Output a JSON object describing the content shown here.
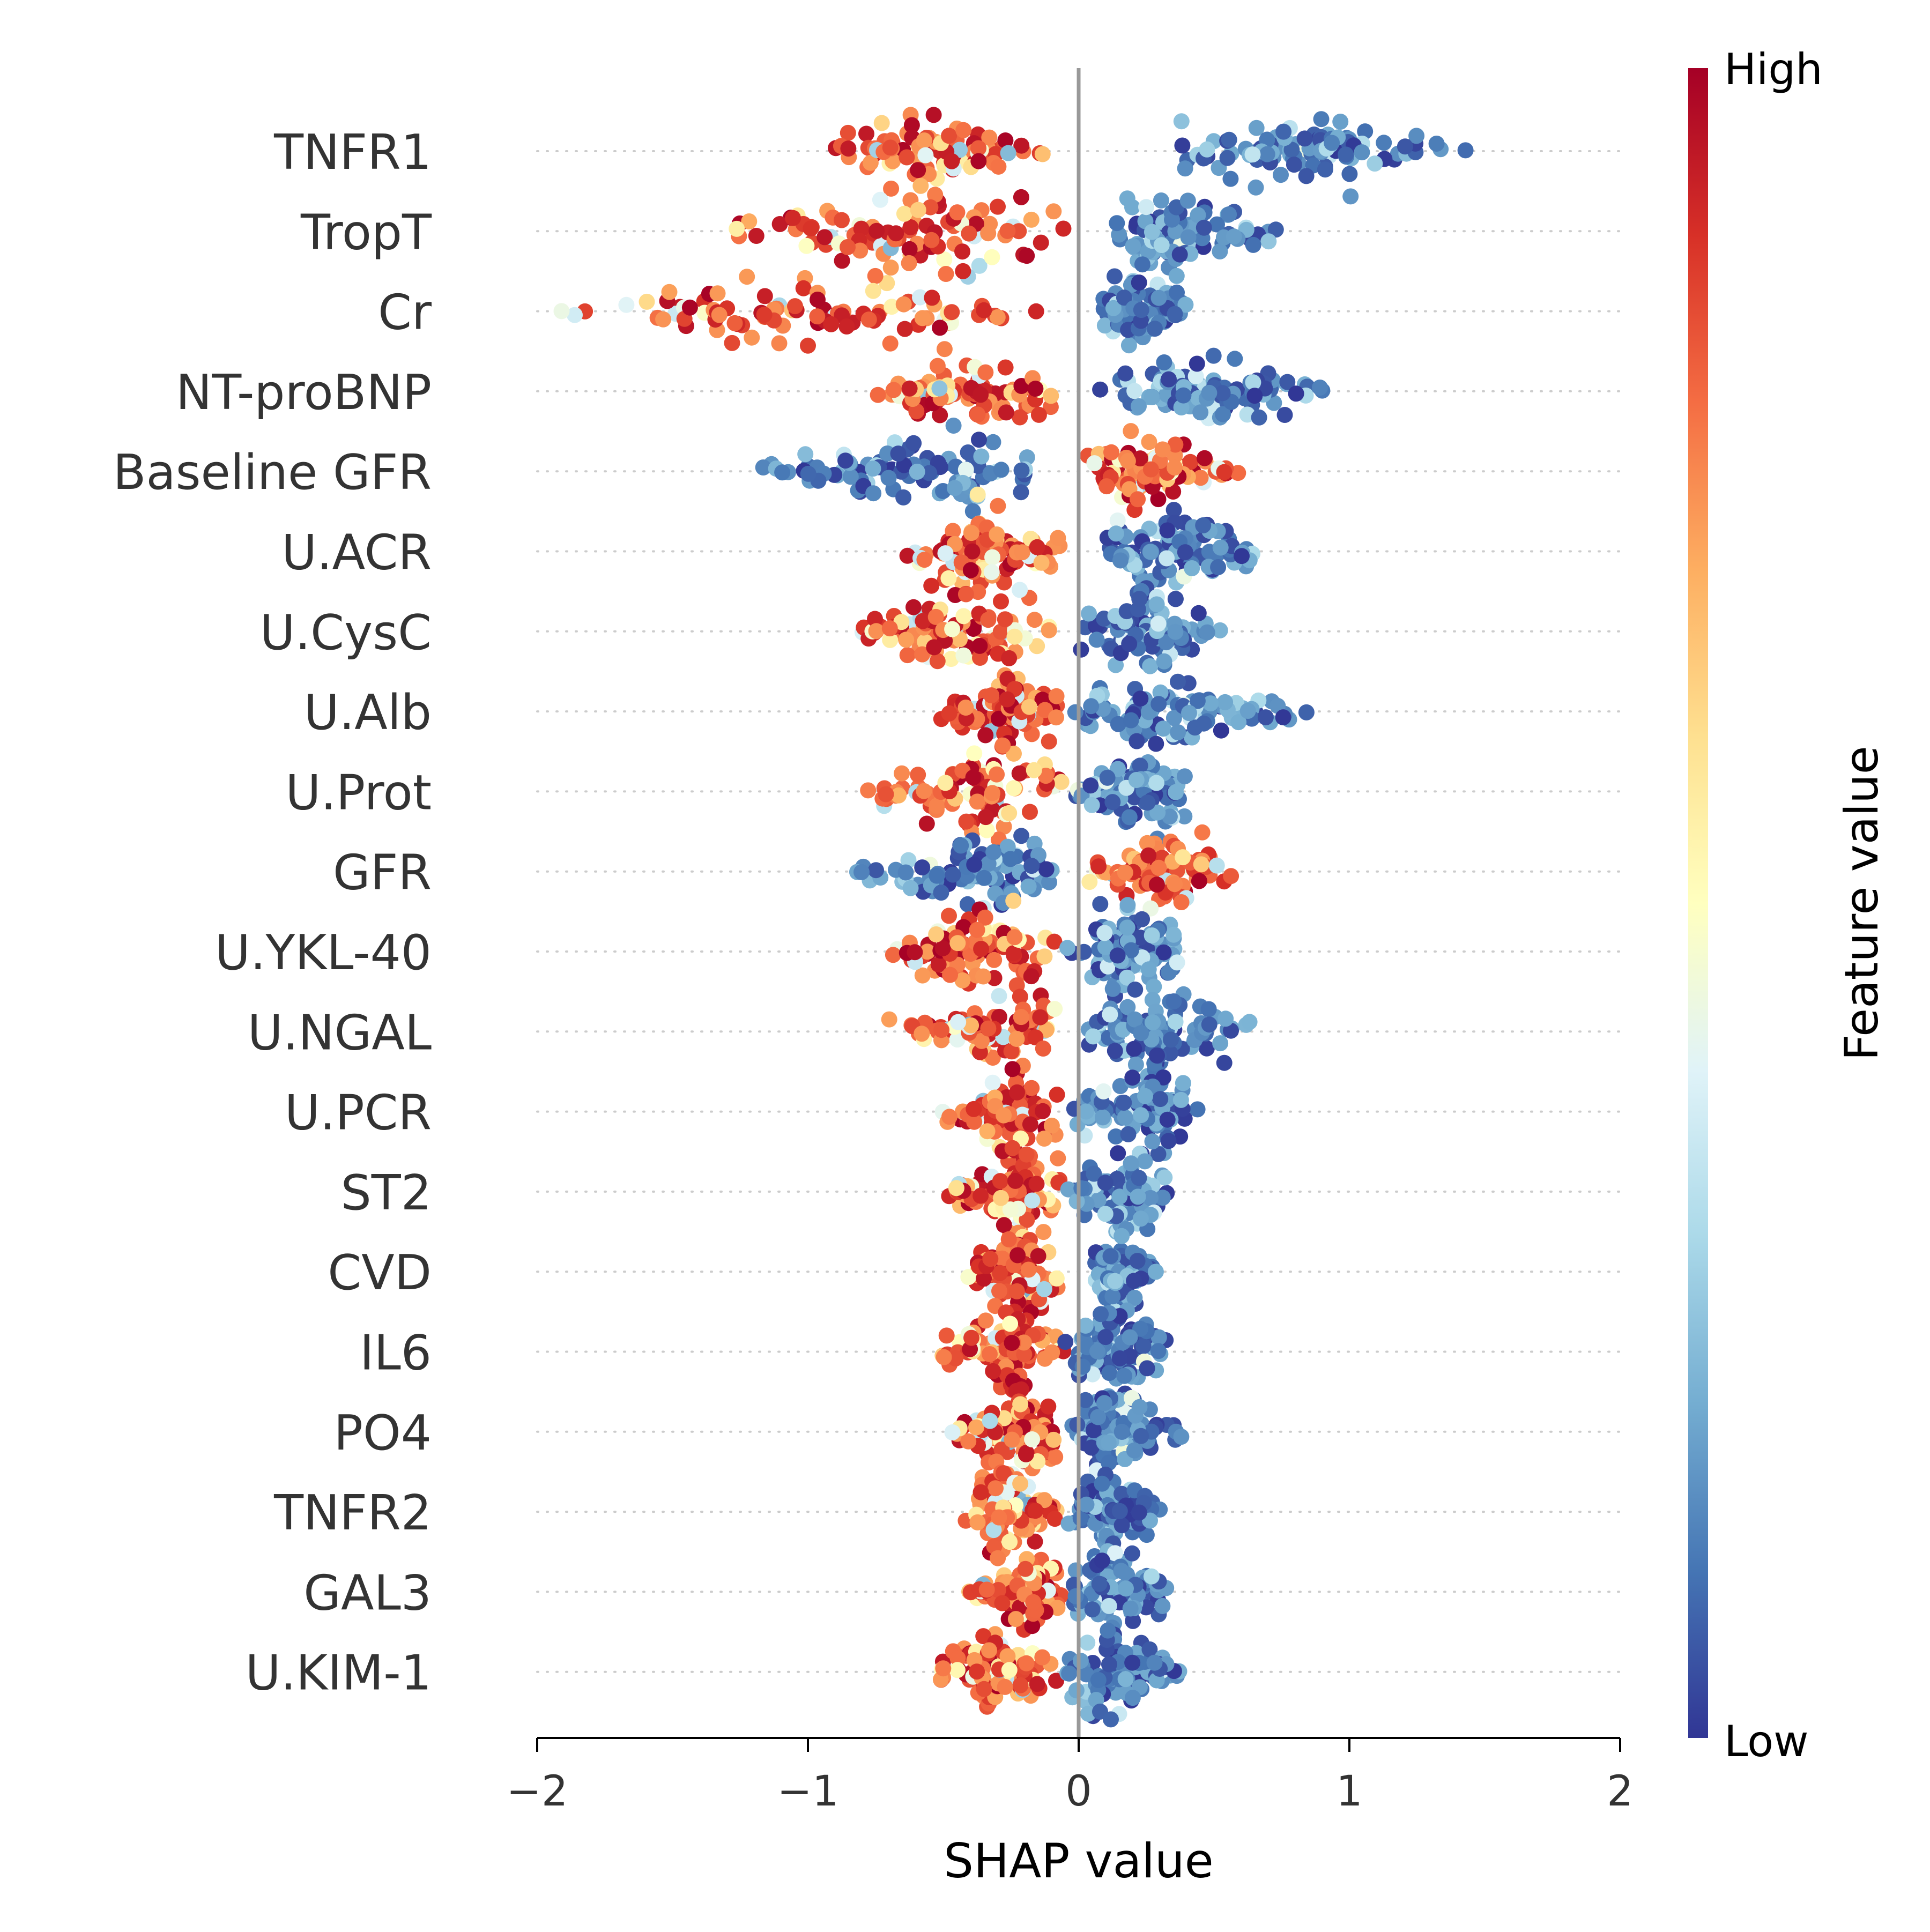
{
  "chart_data": {
    "type": "scatter",
    "subtype": "shap-beeswarm",
    "title": "",
    "xlabel": "SHAP value",
    "ylabel": "",
    "xlim": [
      -2,
      2
    ],
    "xticks": [
      -2,
      -1,
      0,
      1,
      2
    ],
    "xtick_labels": [
      "−2",
      "−1",
      "0",
      "1",
      "2"
    ],
    "grid": "dotted horizontal guide per feature row",
    "zero_line": 0,
    "colorbar": {
      "label": "Feature value",
      "high_label": "High",
      "low_label": "Low",
      "colors": [
        "#313695",
        "#4575b4",
        "#74add1",
        "#abd9e9",
        "#e0f3f8",
        "#ffffbf",
        "#fee090",
        "#fdae61",
        "#f46d43",
        "#d73027",
        "#a50026"
      ]
    },
    "features": [
      {
        "name": "TNFR1",
        "neg": [
          -0.95,
          -0.1
        ],
        "neg_peak": -0.58,
        "pos": [
          0.3,
          1.47
        ],
        "pos_peak": 0.78,
        "spread": 0.75,
        "neg_color": "high",
        "pos_color": "low"
      },
      {
        "name": "TropT",
        "neg": [
          -1.35,
          0.0
        ],
        "neg_peak": -0.45,
        "pos": [
          0.08,
          0.76
        ],
        "pos_peak": 0.28,
        "spread": 1.0,
        "neg_color": "high",
        "pos_color": "low"
      },
      {
        "name": "Cr",
        "neg": [
          -1.98,
          -0.05
        ],
        "neg_peak": -1.1,
        "pos": [
          0.08,
          0.42
        ],
        "pos_peak": 0.2,
        "spread": 0.9,
        "neg_color": "high",
        "pos_color": "low"
      },
      {
        "name": "NT-proBNP",
        "neg": [
          -0.78,
          -0.08
        ],
        "neg_peak": -0.35,
        "pos": [
          0.06,
          0.95
        ],
        "pos_peak": 0.45,
        "spread": 0.85,
        "neg_color": "high",
        "pos_color": "low"
      },
      {
        "name": "Baseline GFR",
        "neg": [
          -1.28,
          -0.05
        ],
        "neg_peak": -0.5,
        "pos": [
          0.0,
          0.65
        ],
        "pos_peak": 0.18,
        "spread": 0.85,
        "neg_color": "low",
        "pos_color": "high"
      },
      {
        "name": "U.ACR",
        "neg": [
          -0.68,
          -0.05
        ],
        "neg_peak": -0.3,
        "pos": [
          0.05,
          0.68
        ],
        "pos_peak": 0.32,
        "spread": 1.0,
        "neg_color": "high",
        "pos_color": "low"
      },
      {
        "name": "U.CysC",
        "neg": [
          -0.85,
          -0.05
        ],
        "neg_peak": -0.45,
        "pos": [
          -0.05,
          0.55
        ],
        "pos_peak": 0.25,
        "spread": 1.0,
        "neg_color": "high",
        "pos_color": "low"
      },
      {
        "name": "U.Alb",
        "neg": [
          -0.57,
          -0.05
        ],
        "neg_peak": -0.25,
        "pos": [
          -0.05,
          0.86
        ],
        "pos_peak": 0.3,
        "spread": 0.85,
        "neg_color": "high",
        "pos_color": "low"
      },
      {
        "name": "U.Prot",
        "neg": [
          -0.8,
          -0.05
        ],
        "neg_peak": -0.35,
        "pos": [
          -0.05,
          0.42
        ],
        "pos_peak": 0.25,
        "spread": 1.0,
        "neg_color": "high",
        "pos_color": "low"
      },
      {
        "name": "GFR",
        "neg": [
          -0.84,
          -0.05
        ],
        "neg_peak": -0.25,
        "pos": [
          -0.02,
          0.6
        ],
        "pos_peak": 0.3,
        "spread": 0.9,
        "neg_color": "low",
        "pos_color": "high"
      },
      {
        "name": "U.YKL-40",
        "neg": [
          -0.72,
          -0.05
        ],
        "neg_peak": -0.35,
        "pos": [
          -0.05,
          0.42
        ],
        "pos_peak": 0.18,
        "spread": 1.0,
        "neg_color": "high",
        "pos_color": "low"
      },
      {
        "name": "U.NGAL",
        "neg": [
          -0.72,
          -0.05
        ],
        "neg_peak": -0.15,
        "pos": [
          -0.05,
          0.65
        ],
        "pos_peak": 0.3,
        "spread": 1.0,
        "neg_color": "high",
        "pos_color": "low"
      },
      {
        "name": "U.PCR",
        "neg": [
          -0.53,
          -0.05
        ],
        "neg_peak": -0.22,
        "pos": [
          -0.05,
          0.47
        ],
        "pos_peak": 0.25,
        "spread": 1.0,
        "neg_color": "high",
        "pos_color": "low"
      },
      {
        "name": "ST2",
        "neg": [
          -0.5,
          -0.05
        ],
        "neg_peak": -0.2,
        "pos": [
          -0.05,
          0.34
        ],
        "pos_peak": 0.15,
        "spread": 1.0,
        "neg_color": "high",
        "pos_color": "low"
      },
      {
        "name": "CVD",
        "neg": [
          -0.43,
          -0.05
        ],
        "neg_peak": -0.18,
        "pos": [
          0.03,
          0.31
        ],
        "pos_peak": 0.13,
        "spread": 1.0,
        "neg_color": "high",
        "pos_color": "low"
      },
      {
        "name": "IL6",
        "neg": [
          -0.53,
          -0.05
        ],
        "neg_peak": -0.25,
        "pos": [
          -0.05,
          0.34
        ],
        "pos_peak": 0.12,
        "spread": 1.0,
        "neg_color": "high",
        "pos_color": "low"
      },
      {
        "name": "PO4",
        "neg": [
          -0.5,
          -0.05
        ],
        "neg_peak": -0.2,
        "pos": [
          -0.05,
          0.43
        ],
        "pos_peak": 0.1,
        "spread": 1.0,
        "neg_color": "high",
        "pos_color": "low"
      },
      {
        "name": "TNFR2",
        "neg": [
          -0.42,
          -0.05
        ],
        "neg_peak": -0.3,
        "pos": [
          -0.05,
          0.3
        ],
        "pos_peak": 0.1,
        "spread": 1.0,
        "neg_color": "high",
        "pos_color": "low"
      },
      {
        "name": "GAL3",
        "neg": [
          -0.42,
          -0.05
        ],
        "neg_peak": -0.15,
        "pos": [
          -0.05,
          0.34
        ],
        "pos_peak": 0.12,
        "spread": 1.0,
        "neg_color": "high",
        "pos_color": "low"
      },
      {
        "name": "U.KIM-1",
        "neg": [
          -0.55,
          -0.05
        ],
        "neg_peak": -0.3,
        "pos": [
          -0.05,
          0.42
        ],
        "pos_peak": 0.1,
        "spread": 1.0,
        "neg_color": "high",
        "pos_color": "low"
      }
    ]
  }
}
